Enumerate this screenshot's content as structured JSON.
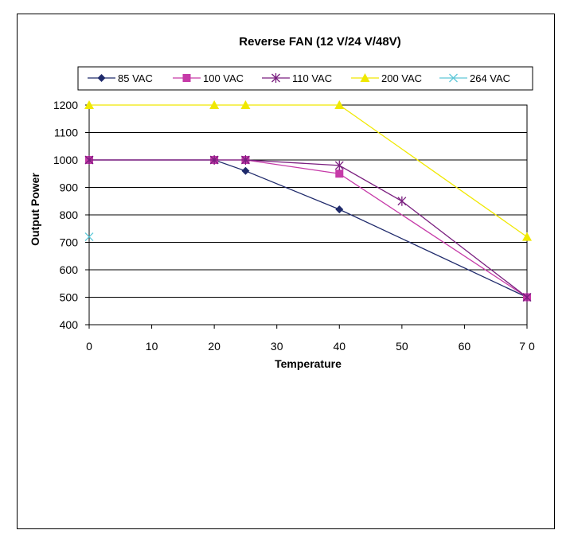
{
  "chart_data": {
    "type": "line",
    "title": "Reverse FAN (12 V/24 V/48V)",
    "xlabel": "Temperature",
    "ylabel": "Output Power",
    "xlim": [
      0,
      70
    ],
    "ylim": [
      400,
      1200
    ],
    "x_ticks": [
      0,
      10,
      20,
      30,
      40,
      50,
      60,
      70
    ],
    "x_tick_labels": [
      "0",
      "10",
      "20",
      "30",
      "40",
      "50",
      "60",
      "7 0"
    ],
    "y_ticks": [
      400,
      500,
      600,
      700,
      800,
      900,
      1000,
      1100,
      1200
    ],
    "grid": "horizontal",
    "legend_position": "top",
    "series": [
      {
        "name": "85 VAC",
        "color": "#1f2a6b",
        "marker": "diamond",
        "x": [
          0,
          20,
          25,
          40,
          70
        ],
        "y": [
          1000,
          1000,
          960,
          820,
          500
        ]
      },
      {
        "name": "100 VAC",
        "color": "#c63aa8",
        "marker": "square",
        "x": [
          0,
          20,
          25,
          40,
          70
        ],
        "y": [
          1000,
          1000,
          1000,
          950,
          500
        ]
      },
      {
        "name": "110 VAC",
        "color": "#7a1f7f",
        "marker": "asterisk",
        "x": [
          0,
          20,
          25,
          40,
          50,
          70
        ],
        "y": [
          1000,
          1000,
          1000,
          980,
          850,
          500
        ]
      },
      {
        "name": "200 VAC",
        "color": "#f0e800",
        "marker": "triangle",
        "x": [
          0,
          20,
          25,
          40,
          70
        ],
        "y": [
          1200,
          1200,
          1200,
          1200,
          720
        ]
      },
      {
        "name": "264 VAC",
        "color": "#5fc8d8",
        "marker": "x",
        "x": [
          0
        ],
        "y": [
          720
        ]
      }
    ]
  }
}
